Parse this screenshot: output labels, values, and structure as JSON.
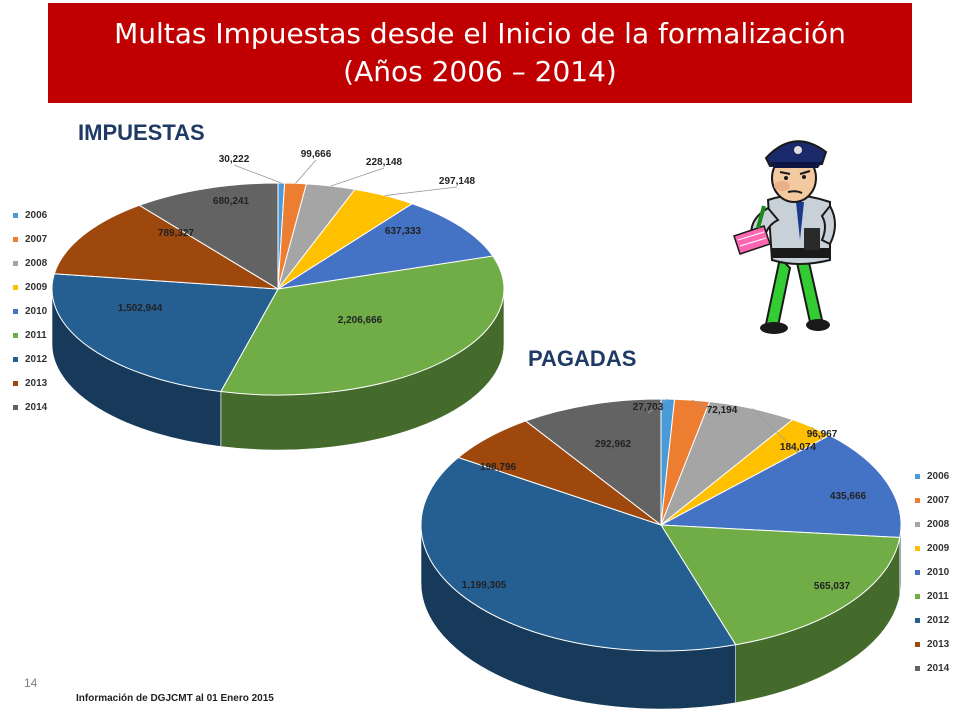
{
  "header": {
    "title_line1": "Multas Impuestas desde el Inicio de la formalización",
    "title_line2": "(Años 2006 – 2014)"
  },
  "colors": {
    "2006": "#4a9ad8",
    "2007": "#ed7d31",
    "2008": "#a5a5a5",
    "2009": "#ffc000",
    "2010": "#4472c4",
    "2011": "#70ad47",
    "2012": "#255e91",
    "2013": "#9e480e",
    "2014": "#636363"
  },
  "chart_data": [
    {
      "type": "pie",
      "title": "IMPUESTAS",
      "categories": [
        "2006",
        "2007",
        "2008",
        "2009",
        "2010",
        "2011",
        "2012",
        "2013",
        "2014"
      ],
      "values": [
        30222,
        99666,
        228148,
        297148,
        637333,
        2206666,
        1502944,
        789327,
        680241
      ],
      "labels": [
        "30,222",
        "99,666",
        "228,148",
        "297,148",
        "637,333",
        "2,206,666",
        "1,502,944",
        "789,327",
        "680,241"
      ],
      "legend_position": "left"
    },
    {
      "type": "pie",
      "title": "PAGADAS",
      "categories": [
        "2006",
        "2007",
        "2008",
        "2009",
        "2010",
        "2011",
        "2012",
        "2013",
        "2014"
      ],
      "values": [
        27703,
        72194,
        184074,
        96967,
        435666,
        565037,
        1199305,
        198796,
        292962
      ],
      "labels": [
        "27,703",
        "72,194",
        "184,074",
        "96,967",
        "435,666",
        "565,037",
        "1,199,305",
        "198,796",
        "292,962"
      ],
      "legend_position": "right"
    }
  ],
  "footer": {
    "page_number": "14",
    "source": "Información de DGJCMT al 01 Enero 2015"
  }
}
